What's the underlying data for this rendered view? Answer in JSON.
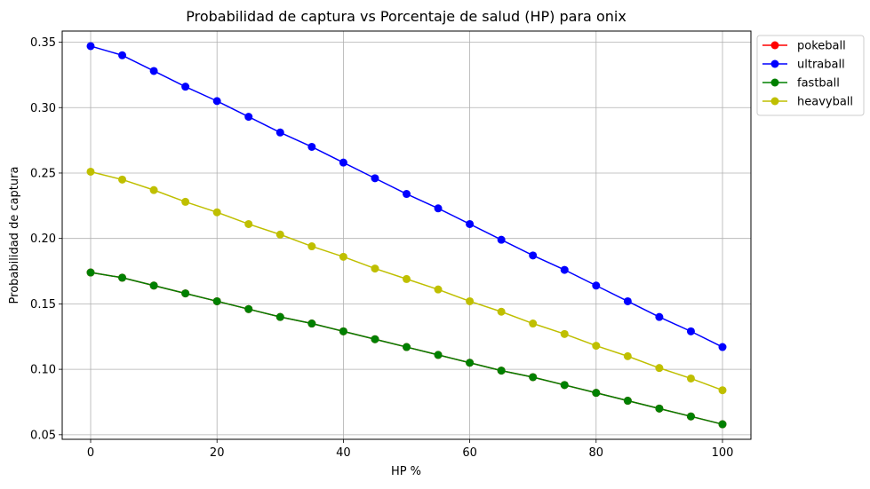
{
  "chart_data": {
    "type": "line",
    "title": "Probabilidad de captura vs Porcentaje de salud (HP) para onix",
    "xlabel": "HP %",
    "ylabel": "Probabilidad de captura",
    "xlim": [
      -4.5,
      104.5
    ],
    "ylim": [
      0.0465,
      0.3585
    ],
    "xticks": [
      0,
      20,
      40,
      60,
      80,
      100
    ],
    "yticks": [
      0.05,
      0.1,
      0.15,
      0.2,
      0.25,
      0.3,
      0.35
    ],
    "xtick_labels": [
      "0",
      "20",
      "40",
      "60",
      "80",
      "100"
    ],
    "ytick_labels": [
      "0.05",
      "0.10",
      "0.15",
      "0.20",
      "0.25",
      "0.30",
      "0.35"
    ],
    "grid": true,
    "legend_position": "outside-top-right",
    "x": [
      0,
      5,
      10,
      15,
      20,
      25,
      30,
      35,
      40,
      45,
      50,
      55,
      60,
      65,
      70,
      75,
      80,
      85,
      90,
      95,
      100
    ],
    "series": [
      {
        "name": "pokeball",
        "color": "#ff0000",
        "marker": "circle",
        "values": [
          0.174,
          0.17,
          0.164,
          0.158,
          0.152,
          0.146,
          0.14,
          0.135,
          0.129,
          0.123,
          0.117,
          0.111,
          0.105,
          0.099,
          0.094,
          0.088,
          0.082,
          0.076,
          0.07,
          0.064,
          0.058
        ]
      },
      {
        "name": "ultraball",
        "color": "#0000ff",
        "marker": "circle",
        "values": [
          0.347,
          0.34,
          0.328,
          0.316,
          0.305,
          0.293,
          0.281,
          0.27,
          0.258,
          0.246,
          0.234,
          0.223,
          0.211,
          0.199,
          0.187,
          0.176,
          0.164,
          0.152,
          0.14,
          0.129,
          0.117
        ]
      },
      {
        "name": "fastball",
        "color": "#008000",
        "marker": "circle",
        "values": [
          0.174,
          0.17,
          0.164,
          0.158,
          0.152,
          0.146,
          0.14,
          0.135,
          0.129,
          0.123,
          0.117,
          0.111,
          0.105,
          0.099,
          0.094,
          0.088,
          0.082,
          0.076,
          0.07,
          0.064,
          0.058
        ]
      },
      {
        "name": "heavyball",
        "color": "#bfbf00",
        "marker": "circle",
        "values": [
          0.251,
          0.245,
          0.237,
          0.228,
          0.22,
          0.211,
          0.203,
          0.194,
          0.186,
          0.177,
          0.169,
          0.161,
          0.152,
          0.144,
          0.135,
          0.127,
          0.118,
          0.11,
          0.101,
          0.093,
          0.084
        ]
      }
    ]
  }
}
